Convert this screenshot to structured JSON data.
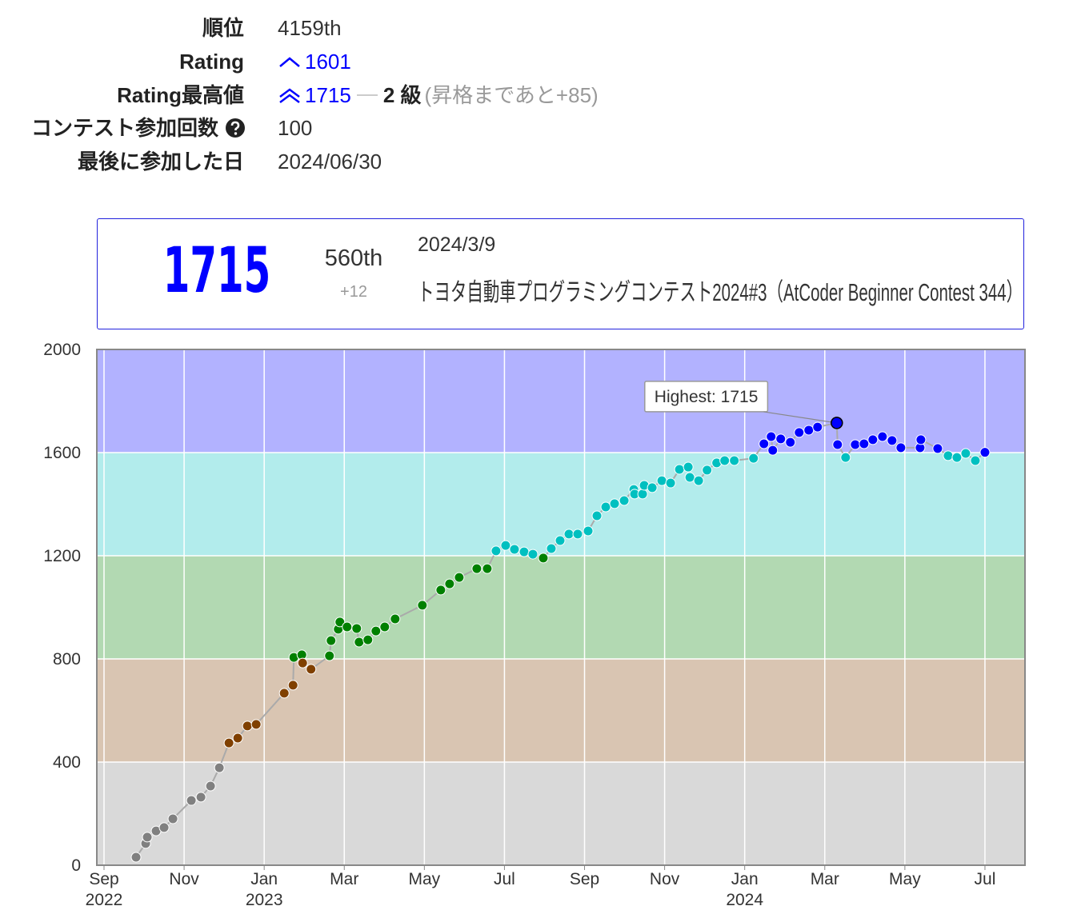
{
  "profile": {
    "rows": [
      {
        "label": "順位",
        "value": "4159th"
      },
      {
        "label": "Rating",
        "value": "1601"
      },
      {
        "label": "Rating最高値",
        "value": "1715",
        "rank": "2 級",
        "note": "(昇格まであと+85)"
      },
      {
        "label": "コンテスト参加回数",
        "value": "100"
      },
      {
        "label": "最後に参加した日",
        "value": "2024/06/30"
      }
    ]
  },
  "contest_card": {
    "rating": "1715",
    "rank": "560th",
    "diff": "+12",
    "date": "2024/3/9",
    "name": "トヨタ自動車プログラミングコンテスト2024#3（AtCoder Beginner Contest 344）"
  },
  "chart_data": {
    "type": "line",
    "annotation": "Highest: 1715",
    "x": [
      0.8,
      1.04,
      1.08,
      1.3,
      1.5,
      1.72,
      2.18,
      2.42,
      2.66,
      2.88,
      3.12,
      3.34,
      3.58,
      3.8,
      4.5,
      4.72,
      4.74,
      4.94,
      4.96,
      5.17,
      5.63,
      5.67,
      5.85,
      5.89,
      6.07,
      6.31,
      6.37,
      6.59,
      6.79,
      7.01,
      7.27,
      7.95,
      8.41,
      8.63,
      8.87,
      9.31,
      9.57,
      9.79,
      10.03,
      10.25,
      10.49,
      10.71,
      10.97,
      11.17,
      11.39,
      11.61,
      11.83,
      12.09,
      12.31,
      12.53,
      12.75,
      12.99,
      13.23,
      13.25,
      13.45,
      13.49,
      13.69,
      13.93,
      14.15,
      14.37,
      14.59,
      14.63,
      14.85,
      15.06,
      15.3,
      15.5,
      15.74,
      16.22,
      16.48,
      16.66,
      16.7,
      16.9,
      17.14,
      17.36,
      17.6,
      17.82,
      18.3,
      18.32,
      18.52,
      18.76,
      18.98,
      19.2,
      19.44,
      19.68,
      19.9,
      20.38,
      20.4,
      20.82,
      21.08,
      21.3,
      21.52,
      21.76,
      22.0
    ],
    "values": [
      31,
      84,
      109,
      133,
      146,
      180,
      251,
      264,
      307,
      378,
      474,
      493,
      540,
      546,
      667,
      698,
      806,
      816,
      784,
      760,
      812,
      871,
      915,
      943,
      924,
      918,
      865,
      874,
      908,
      924,
      955,
      1008,
      1067,
      1091,
      1116,
      1150,
      1150,
      1219,
      1240,
      1225,
      1215,
      1206,
      1191,
      1228,
      1259,
      1284,
      1284,
      1296,
      1355,
      1389,
      1402,
      1414,
      1457,
      1439,
      1439,
      1473,
      1464,
      1491,
      1482,
      1535,
      1544,
      1504,
      1491,
      1532,
      1560,
      1569,
      1569,
      1578,
      1634,
      1662,
      1609,
      1653,
      1640,
      1678,
      1687,
      1699,
      1715,
      1631,
      1581,
      1631,
      1634,
      1650,
      1662,
      1647,
      1619,
      1619,
      1650,
      1616,
      1588,
      1581,
      1597,
      1569,
      1601
    ],
    "line_color": "#aaaaaa",
    "bands": [
      {
        "from": 0,
        "to": 400,
        "color": "#d9d9d9",
        "point_color": "#808080"
      },
      {
        "from": 400,
        "to": 800,
        "color": "#d9c5b2",
        "point_color": "#804000"
      },
      {
        "from": 800,
        "to": 1200,
        "color": "#b2d9b2",
        "point_color": "#008000"
      },
      {
        "from": 1200,
        "to": 1600,
        "color": "#b2ecec",
        "point_color": "#00c0c0"
      },
      {
        "from": 1600,
        "to": 2000,
        "color": "#b2b2ff",
        "point_color": "#0000ff"
      }
    ],
    "xlim": [
      -0.18,
      23.0
    ],
    "ylim": [
      0,
      2000
    ],
    "yticks": [
      0,
      400,
      800,
      1200,
      1600,
      2000
    ],
    "grid": true,
    "xticks": [
      {
        "value": 0,
        "label": "Sep"
      },
      {
        "value": 2,
        "label": "Nov"
      },
      {
        "value": 4,
        "label": "Jan"
      },
      {
        "value": 6,
        "label": "Mar"
      },
      {
        "value": 8,
        "label": "May"
      },
      {
        "value": 10,
        "label": "Jul"
      },
      {
        "value": 12,
        "label": "Sep"
      },
      {
        "value": 14,
        "label": "Nov"
      },
      {
        "value": 16,
        "label": "Jan"
      },
      {
        "value": 18,
        "label": "Mar"
      },
      {
        "value": 20,
        "label": "May"
      },
      {
        "value": 22,
        "label": "Jul"
      }
    ],
    "xtick_years": [
      {
        "value": 0,
        "label": "2022"
      },
      {
        "value": 4,
        "label": "2023"
      },
      {
        "value": 16,
        "label": "2024"
      }
    ]
  }
}
